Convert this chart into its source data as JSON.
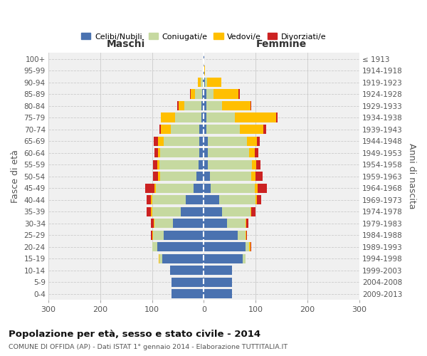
{
  "age_groups": [
    "0-4",
    "5-9",
    "10-14",
    "15-19",
    "20-24",
    "25-29",
    "30-34",
    "35-39",
    "40-44",
    "45-49",
    "50-54",
    "55-59",
    "60-64",
    "65-69",
    "70-74",
    "75-79",
    "80-84",
    "85-89",
    "90-94",
    "95-99",
    "100+"
  ],
  "birth_years": [
    "2009-2013",
    "2004-2008",
    "1999-2003",
    "1994-1998",
    "1989-1993",
    "1984-1988",
    "1979-1983",
    "1974-1978",
    "1969-1973",
    "1964-1968",
    "1959-1963",
    "1954-1958",
    "1949-1953",
    "1944-1948",
    "1939-1943",
    "1934-1938",
    "1929-1933",
    "1924-1928",
    "1919-1923",
    "1914-1918",
    "≤ 1913"
  ],
  "colors": {
    "celibi": "#4a72b0",
    "coniugati": "#c6d9a0",
    "vedovi": "#ffbf00",
    "divorziati": "#cc2222",
    "background": "#f0f0f0",
    "grid": "#cccccc"
  },
  "maschi": {
    "celibi": [
      62,
      62,
      65,
      80,
      90,
      78,
      60,
      45,
      35,
      20,
      14,
      10,
      9,
      8,
      8,
      5,
      5,
      3,
      2,
      1,
      1
    ],
    "coniugati": [
      0,
      0,
      0,
      5,
      10,
      20,
      35,
      55,
      65,
      72,
      70,
      75,
      75,
      70,
      55,
      50,
      32,
      14,
      4,
      0,
      0
    ],
    "vedovi": [
      0,
      0,
      0,
      2,
      0,
      2,
      2,
      2,
      2,
      3,
      4,
      5,
      5,
      10,
      20,
      28,
      12,
      8,
      5,
      0,
      0
    ],
    "divorziati": [
      0,
      0,
      0,
      0,
      0,
      2,
      5,
      8,
      8,
      18,
      10,
      8,
      6,
      8,
      2,
      0,
      2,
      1,
      0,
      0,
      0
    ]
  },
  "femmine": {
    "celibi": [
      55,
      55,
      55,
      75,
      80,
      65,
      45,
      35,
      30,
      14,
      12,
      8,
      8,
      8,
      5,
      5,
      5,
      5,
      2,
      1,
      1
    ],
    "coniugati": [
      0,
      0,
      0,
      5,
      8,
      15,
      35,
      55,
      70,
      85,
      80,
      85,
      80,
      75,
      65,
      55,
      30,
      14,
      4,
      0,
      0
    ],
    "vedovi": [
      0,
      0,
      0,
      0,
      2,
      2,
      2,
      2,
      3,
      5,
      8,
      8,
      10,
      20,
      45,
      80,
      55,
      48,
      28,
      2,
      0
    ],
    "divorziati": [
      0,
      0,
      0,
      0,
      2,
      2,
      4,
      8,
      8,
      18,
      14,
      8,
      8,
      5,
      5,
      2,
      2,
      2,
      0,
      0,
      0
    ]
  },
  "title": "Popolazione per età, sesso e stato civile - 2014",
  "subtitle": "COMUNE DI OFFIDA (AP) - Dati ISTAT 1° gennaio 2014 - Elaborazione TUTTITALIA.IT",
  "xlabel_left": "Maschi",
  "xlabel_right": "Femmine",
  "ylabel_left": "Fasce di età",
  "ylabel_right": "Anni di nascita",
  "xlim": 300,
  "legend_labels": [
    "Celibi/Nubili",
    "Coniugati/e",
    "Vedovi/e",
    "Divorziati/e"
  ]
}
